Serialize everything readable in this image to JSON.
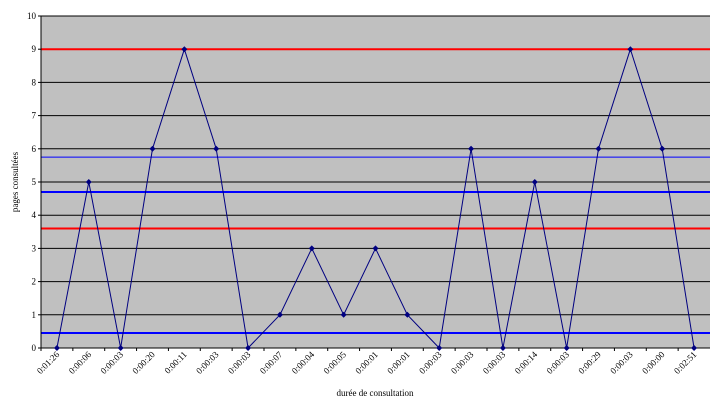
{
  "chart_data": {
    "type": "line",
    "x_label": "durée de consultation",
    "y_label": "pages consultées",
    "categories": [
      "0:01:26",
      "0:00:06",
      "0:00:03",
      "0:00:20",
      "0:00:11",
      "0:00:03",
      "0:00:03",
      "0:00:07",
      "0:00:04",
      "0:00:05",
      "0:00:01",
      "0:00:01",
      "0:00:03",
      "0:00:03",
      "0:00:03",
      "0:00:14",
      "0:00:03",
      "0:00:29",
      "0:00:03",
      "0:00:00",
      "0:02:51"
    ],
    "values": [
      0,
      5,
      0,
      6,
      9,
      6,
      0,
      1,
      3,
      1,
      3,
      1,
      0,
      6,
      0,
      5,
      0,
      6,
      9,
      6,
      0
    ],
    "color": "#000080",
    "ylim": [
      0,
      10
    ],
    "yticks": [
      0,
      1,
      2,
      3,
      4,
      5,
      6,
      7,
      8,
      9,
      10
    ],
    "grid": true,
    "reference_lines": [
      {
        "value": 9,
        "color": "#ff0000",
        "width": 2
      },
      {
        "value": 5.75,
        "color": "#0000ff",
        "width": 1
      },
      {
        "value": 4.7,
        "color": "#0000ff",
        "width": 2
      },
      {
        "value": 3.6,
        "color": "#ff0000",
        "width": 2
      },
      {
        "value": 0.45,
        "color": "#0000ff",
        "width": 2
      }
    ]
  }
}
